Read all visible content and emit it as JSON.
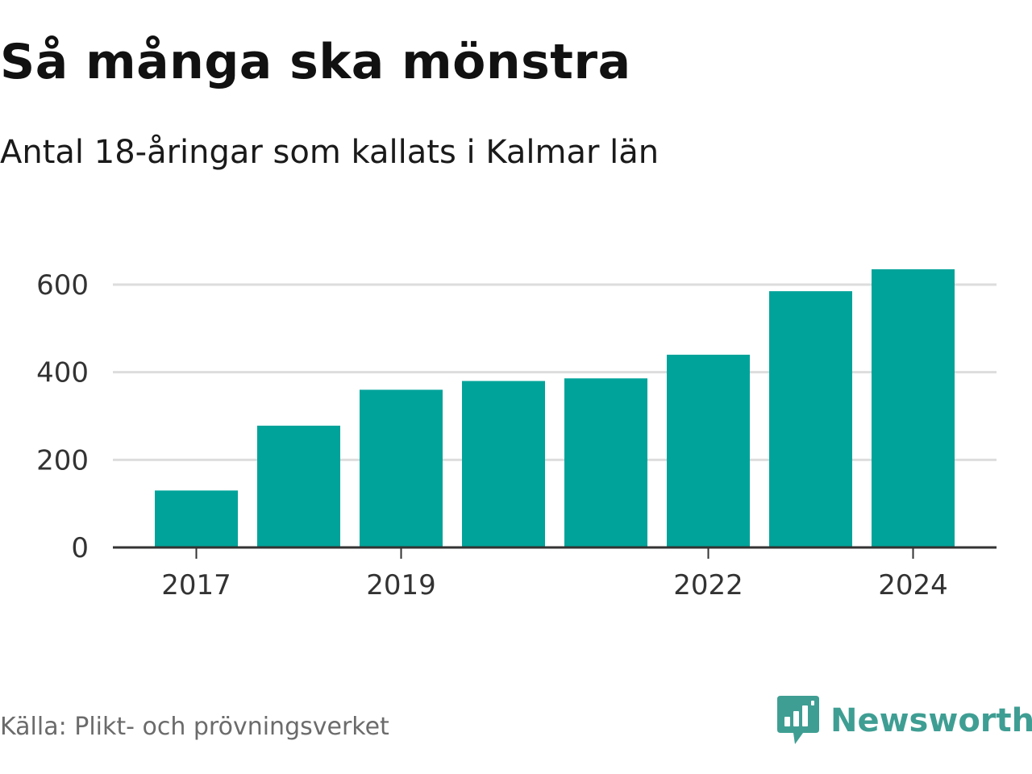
{
  "header": {
    "title": "Så många ska mönstra",
    "subtitle": "Antal 18-åringar som kallats i Kalmar län"
  },
  "footer": {
    "source": "Källa: Plikt- och prövningsverket",
    "brand": "Newsworthy",
    "brand_icon": "newsworthy-chart-icon"
  },
  "colors": {
    "bar": "#00a39a",
    "grid": "#dddddd",
    "axis": "#333333",
    "brand": "#3f9e93"
  },
  "chart_data": {
    "type": "bar",
    "title": "Så många ska mönstra",
    "subtitle": "Antal 18-åringar som kallats i Kalmar län",
    "categories": [
      "2017",
      "2018",
      "2019",
      "2020",
      "2021",
      "2022",
      "2023",
      "2024"
    ],
    "values": [
      130,
      278,
      360,
      380,
      386,
      440,
      585,
      635
    ],
    "x_tick_labels": [
      "2017",
      "2019",
      "2022",
      "2024"
    ],
    "y_ticks": [
      0,
      200,
      400,
      600
    ],
    "ylim": [
      0,
      650
    ],
    "xlabel": "",
    "ylabel": "",
    "grid": true,
    "legend": "none"
  }
}
